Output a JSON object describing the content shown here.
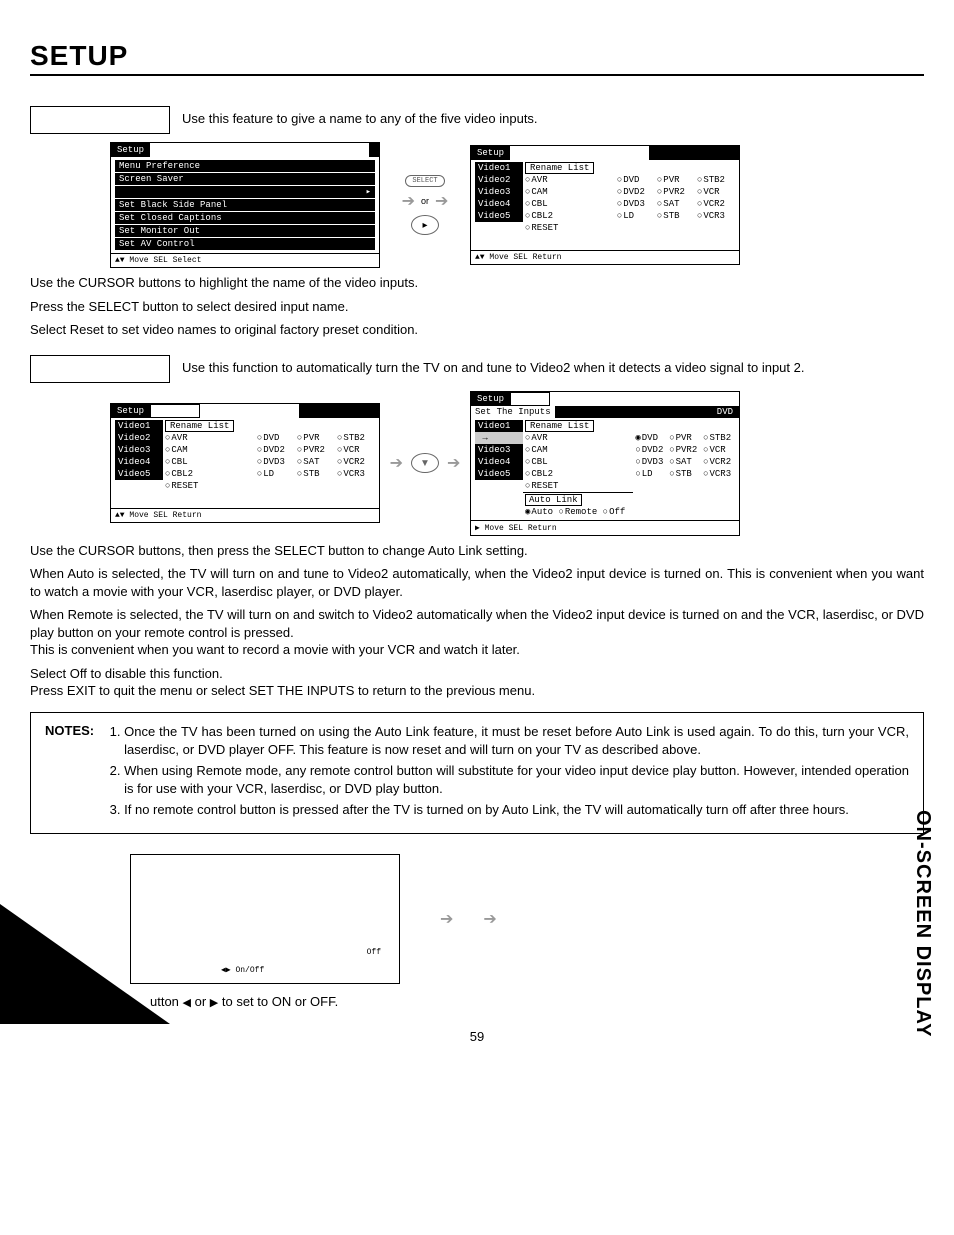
{
  "page": {
    "title": "SETUP",
    "sideTitle": "ON-SCREEN DISPLAY",
    "number": "59"
  },
  "section1": {
    "intro": "Use this feature to give a name to any of the five video inputs.",
    "instr1": "Use the CURSOR buttons to highlight the name of the video inputs.",
    "instr2": "Press the SELECT button to select desired input name.",
    "instr3": "Select Reset to set video names to original factory preset condition.",
    "arrowLabel1": "SELECT",
    "arrowLabel2": "or",
    "screenA": {
      "title": "Setup",
      "items": [
        "Menu Preference",
        "Screen Saver",
        "",
        "Set Black Side Panel",
        "Set Closed Captions",
        "Set Monitor Out",
        "Set AV Control"
      ],
      "footer": "▲▼ Move  SEL Select"
    },
    "screenB": {
      "title": "Setup",
      "sideItems": [
        "Video1",
        "Video2",
        "Video3",
        "Video4",
        "Video5"
      ],
      "header": "Rename List",
      "rows": [
        [
          "AVR",
          "DVD",
          "PVR",
          "STB2"
        ],
        [
          "CAM",
          "DVD2",
          "PVR2",
          "VCR"
        ],
        [
          "CBL",
          "DVD3",
          "SAT",
          "VCR2"
        ],
        [
          "CBL2",
          "LD",
          "STB",
          "VCR3"
        ]
      ],
      "reset": "RESET",
      "footer": "▲▼ Move  SEL Return"
    }
  },
  "section2": {
    "intro": "Use this function to automatically turn the TV on and tune to Video2 when it detects a video signal to input 2.",
    "para1": "Use the CURSOR buttons, then press the SELECT button to change Auto Link setting.",
    "para2": "When Auto is selected, the TV will turn on and tune to Video2 automatically, when the Video2 input device is turned on. This is convenient when you want to watch a movie with your VCR, laserdisc player, or DVD player.",
    "para3a": "When Remote is selected, the TV will turn on and switch to Video2 automatically when the Video2 input device is turned on and the VCR, laserdisc, or DVD play button on your remote control is pressed.",
    "para3b": "This is convenient when you want to record a movie with your VCR and watch it later.",
    "para4a": "Select Off to disable this function.",
    "para4b": "Press EXIT to quit the menu or select SET THE INPUTS to return to the previous menu.",
    "screenA": {
      "title": "Setup",
      "sideItems": [
        "Video1",
        "Video2",
        "Video3",
        "Video4",
        "Video5"
      ],
      "header": "Rename List",
      "rows": [
        [
          "AVR",
          "DVD",
          "PVR",
          "STB2"
        ],
        [
          "CAM",
          "DVD2",
          "PVR2",
          "VCR"
        ],
        [
          "CBL",
          "DVD3",
          "SAT",
          "VCR2"
        ],
        [
          "CBL2",
          "LD",
          "STB",
          "VCR3"
        ]
      ],
      "reset": "RESET",
      "footer": "▲▼ Move  SEL Return"
    },
    "screenB": {
      "title": "Setup",
      "subtitle": "Set The Inputs",
      "badge": "DVD",
      "sideItems": [
        "Video1",
        "",
        "Video3",
        "Video4",
        "Video5"
      ],
      "header": "Rename List",
      "rows": [
        [
          "AVR",
          "DVD",
          "PVR",
          "STB2"
        ],
        [
          "CAM",
          "DVD2",
          "PVR2",
          "VCR"
        ],
        [
          "CBL",
          "DVD3",
          "SAT",
          "VCR2"
        ],
        [
          "CBL2",
          "LD",
          "STB",
          "VCR3"
        ]
      ],
      "reset": "RESET",
      "autoLinkLabel": "Auto Link",
      "autoLinkOpts": [
        "Auto",
        "Remote",
        "Off"
      ],
      "footer": "▶ Move  SEL Return",
      "selectedRow": 0,
      "selectedCol": 1
    },
    "notes": {
      "label": "NOTES:",
      "items": [
        "Once the TV has been turned on using the Auto Link feature, it must be reset before Auto Link is used again. To do this, turn your VCR, laserdisc, or DVD player OFF. This feature is now reset and will turn on your TV as described above.",
        "When using Remote mode, any remote control button will substitute for your video input device play button. However, intended operation is for use with your VCR, laserdisc, or DVD play button.",
        "If no remote control button is pressed after the TV is turned on by Auto Link, the TV will automatically turn off after three hours."
      ]
    }
  },
  "section3": {
    "offLabel": "Off",
    "onoffLabel": "On/Off",
    "setText_a": "utton ",
    "setText_b": " or ",
    "setText_c": " to set to ON or OFF."
  }
}
